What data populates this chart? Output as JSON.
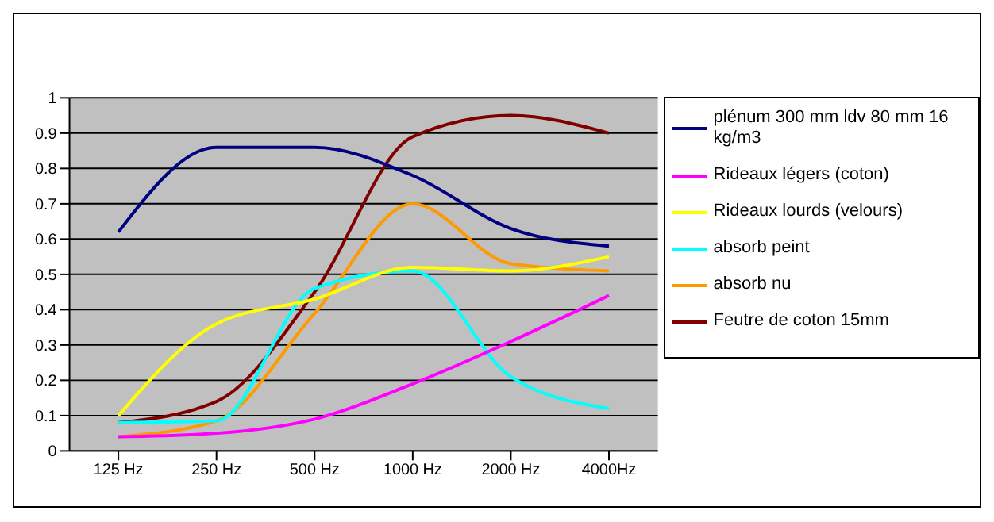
{
  "chart_data": {
    "type": "line",
    "categories": [
      "125 Hz",
      "250 Hz",
      "500 Hz",
      "1000 Hz",
      "2000 Hz",
      "4000Hz"
    ],
    "series": [
      {
        "name": "plénum 300 mm ldv 80 mm 16 kg/m3",
        "color": "#000080",
        "values": [
          0.62,
          0.86,
          0.86,
          0.78,
          0.63,
          0.58
        ]
      },
      {
        "name": "Rideaux légers (coton)",
        "color": "#ff00ff",
        "values": [
          0.04,
          0.05,
          0.09,
          0.19,
          0.31,
          0.44
        ]
      },
      {
        "name": "Rideaux lourds (velours)",
        "color": "#ffff00",
        "values": [
          0.1,
          0.36,
          0.43,
          0.52,
          0.51,
          0.55
        ]
      },
      {
        "name": "absorb peint",
        "color": "#00ffff",
        "values": [
          0.08,
          0.085,
          0.46,
          0.51,
          0.21,
          0.12
        ]
      },
      {
        "name": "absorb nu",
        "color": "#ff9900",
        "values": [
          0.04,
          0.085,
          0.39,
          0.7,
          0.53,
          0.51
        ]
      },
      {
        "name": "Feutre de coton 15mm",
        "color": "#800000",
        "values": [
          0.08,
          0.14,
          0.45,
          0.89,
          0.95,
          0.9
        ]
      }
    ],
    "ylim": [
      0,
      1
    ],
    "yticks": [
      0,
      0.1,
      0.2,
      0.3,
      0.4,
      0.5,
      0.6,
      0.7,
      0.8,
      0.9,
      1
    ],
    "grid": "y",
    "legend": "right",
    "marker": "none",
    "line_style": "solid"
  }
}
